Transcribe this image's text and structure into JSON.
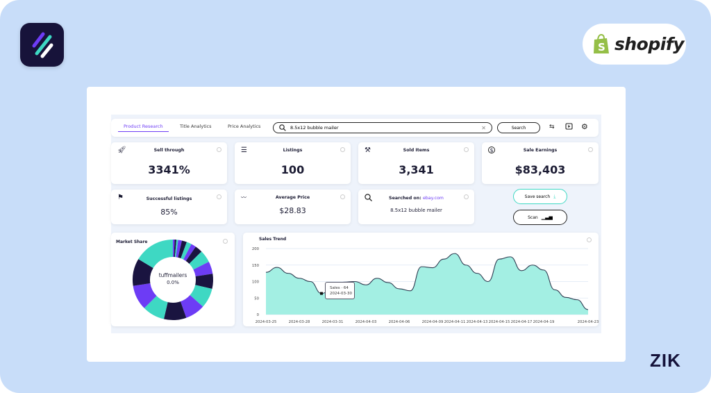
{
  "brand": {
    "right_logo": "shopify",
    "corner_mark": "ZIK"
  },
  "nav": {
    "tabs": [
      {
        "label": "Product Research",
        "active": true
      },
      {
        "label": "Title Analytics"
      },
      {
        "label": "Price Analytics"
      }
    ],
    "search_value": "8.5x12 bubble mailer",
    "search_button": "Search",
    "icons": [
      "search-icon",
      "clear-icon",
      "filter-sliders-icon",
      "video-play-icon",
      "gear-icon"
    ]
  },
  "stats": [
    {
      "label": "Sell through",
      "value": "3341%",
      "icon": "rocket-icon"
    },
    {
      "label": "Listings",
      "value": "100",
      "icon": "list-icon"
    },
    {
      "label": "Sold Items",
      "value": "3,341",
      "icon": "gavel-icon"
    },
    {
      "label": "Sale Earnings",
      "value": "$83,403",
      "icon": "dollar-icon"
    },
    {
      "label": "Successful listings",
      "value": "85%",
      "icon": "flag-icon"
    },
    {
      "label": "Average Price",
      "value": "$28.83",
      "icon": "trend-icon"
    }
  ],
  "searched": {
    "label": "Searched on:",
    "site": "ebay.com",
    "query": "8.5x12 bubble mailer"
  },
  "actions": {
    "save": "Save search",
    "scan": "Scan"
  },
  "colors": {
    "teal": "#3ed8c3",
    "dark": "#1a1440",
    "purple": "#6d3cf5",
    "accent": "#6d3cf5",
    "area": "#a3efe3"
  },
  "chart_data": [
    {
      "type": "pie",
      "title": "Market Share",
      "center_label": "tuffmailers",
      "center_value": "0.0%",
      "values": [
        0.7,
        0.7,
        0.7,
        1.5,
        2,
        2,
        2,
        3,
        5,
        5,
        6,
        8,
        8,
        9,
        9,
        10,
        11,
        16.4
      ],
      "colors": [
        "purple",
        "dark",
        "teal",
        "purple",
        "dark",
        "teal",
        "purple",
        "dark",
        "teal",
        "purple",
        "dark",
        "teal",
        "purple",
        "dark",
        "teal",
        "purple",
        "dark",
        "teal"
      ]
    },
    {
      "type": "area",
      "title": "Sales Trend",
      "ylim": [
        0,
        200
      ],
      "yticks": [
        "0",
        "50",
        "100",
        "150",
        "200"
      ],
      "x": [
        "2024-03-25",
        "2024-03-26",
        "2024-03-27",
        "2024-03-28",
        "2024-03-29",
        "2024-03-30",
        "2024-03-31",
        "2024-04-01",
        "2024-04-02",
        "2024-04-03",
        "2024-04-04",
        "2024-04-05",
        "2024-04-06",
        "2024-04-07",
        "2024-04-08",
        "2024-04-09",
        "2024-04-10",
        "2024-04-11",
        "2024-04-12",
        "2024-04-13",
        "2024-04-14",
        "2024-04-15",
        "2024-04-16",
        "2024-04-17",
        "2024-04-18",
        "2024-04-19",
        "2024-04-20",
        "2024-04-21",
        "2024-04-22",
        "2024-04-23"
      ],
      "values": [
        128,
        143,
        125,
        110,
        100,
        64,
        78,
        98,
        100,
        90,
        110,
        97,
        78,
        72,
        145,
        142,
        168,
        185,
        150,
        125,
        100,
        168,
        175,
        133,
        150,
        135,
        75,
        52,
        45,
        15
      ],
      "xtick_labels": [
        "2024-03-25",
        "2024-03-28",
        "2024-03-31",
        "2024-04-03",
        "2024-04-06",
        "2024-04-09",
        "2024-04-11",
        "2024-04-13",
        "2024-04-15",
        "2024-04-17",
        "2024-04-19",
        "2024-04-23"
      ],
      "grid": true,
      "tooltip": {
        "series": "Sales",
        "value": "64",
        "date": "2024-03-30"
      }
    }
  ]
}
